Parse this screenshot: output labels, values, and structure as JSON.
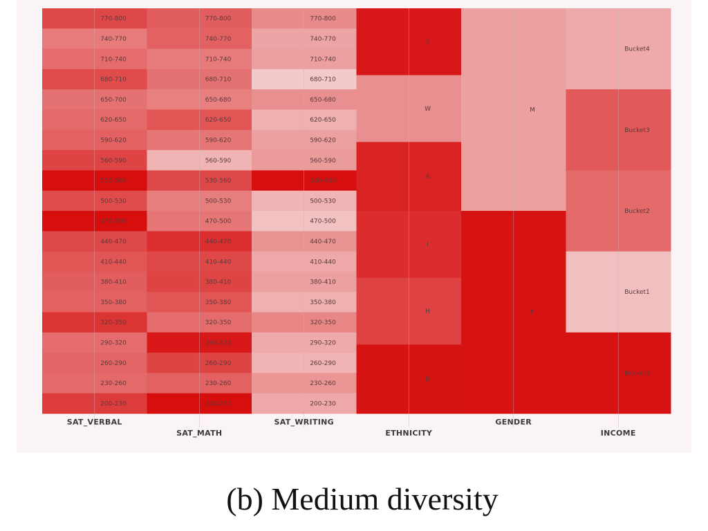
{
  "caption": "(b) Medium diversity",
  "chart_data": {
    "type": "heatmap",
    "title": "",
    "colors": {
      "low": "#f6dede",
      "high": "#d60e0e",
      "panel": "#faf4f6"
    },
    "columns": [
      {
        "name": "SAT_VERBAL",
        "cells": [
          {
            "label": "770-800",
            "value": 0.72
          },
          {
            "label": "740-770",
            "value": 0.48
          },
          {
            "label": "710-740",
            "value": 0.55
          },
          {
            "label": "680-710",
            "value": 0.7
          },
          {
            "label": "650-700",
            "value": 0.52
          },
          {
            "label": "620-650",
            "value": 0.56
          },
          {
            "label": "590-620",
            "value": 0.6
          },
          {
            "label": "560-590",
            "value": 0.74
          },
          {
            "label": "530-560",
            "value": 1.0
          },
          {
            "label": "500-530",
            "value": 0.7
          },
          {
            "label": "470-500",
            "value": 1.0
          },
          {
            "label": "440-470",
            "value": 0.72
          },
          {
            "label": "410-440",
            "value": 0.66
          },
          {
            "label": "380-410",
            "value": 0.62
          },
          {
            "label": "350-380",
            "value": 0.6
          },
          {
            "label": "320-350",
            "value": 0.82
          },
          {
            "label": "290-320",
            "value": 0.55
          },
          {
            "label": "260-290",
            "value": 0.58
          },
          {
            "label": "230-260",
            "value": 0.56
          },
          {
            "label": "200-230",
            "value": 0.78
          }
        ]
      },
      {
        "name": "SAT_MATH",
        "cells": [
          {
            "label": "770-800",
            "value": 0.62
          },
          {
            "label": "740-770",
            "value": 0.6
          },
          {
            "label": "710-740",
            "value": 0.48
          },
          {
            "label": "680-710",
            "value": 0.52
          },
          {
            "label": "650-680",
            "value": 0.45
          },
          {
            "label": "620-650",
            "value": 0.66
          },
          {
            "label": "590-620",
            "value": 0.5
          },
          {
            "label": "560-590",
            "value": 0.2
          },
          {
            "label": "530-560",
            "value": 0.72
          },
          {
            "label": "500-530",
            "value": 0.46
          },
          {
            "label": "470-500",
            "value": 0.5
          },
          {
            "label": "440-470",
            "value": 0.84
          },
          {
            "label": "410-440",
            "value": 0.72
          },
          {
            "label": "380-410",
            "value": 0.74
          },
          {
            "label": "350-380",
            "value": 0.66
          },
          {
            "label": "320-350",
            "value": 0.55
          },
          {
            "label": "290-320",
            "value": 0.95
          },
          {
            "label": "260-290",
            "value": 0.74
          },
          {
            "label": "230-260",
            "value": 0.6
          },
          {
            "label": "200-230",
            "value": 1.0
          }
        ]
      },
      {
        "name": "SAT_WRITING",
        "cells": [
          {
            "label": "770-800",
            "value": 0.4
          },
          {
            "label": "740-770",
            "value": 0.28
          },
          {
            "label": "710-740",
            "value": 0.3
          },
          {
            "label": "680-710",
            "value": 0.1
          },
          {
            "label": "650-680",
            "value": 0.38
          },
          {
            "label": "620-650",
            "value": 0.22
          },
          {
            "label": "590-620",
            "value": 0.3
          },
          {
            "label": "560-590",
            "value": 0.32
          },
          {
            "label": "530-560",
            "value": 1.0
          },
          {
            "label": "500-530",
            "value": 0.2
          },
          {
            "label": "470-500",
            "value": 0.14
          },
          {
            "label": "440-470",
            "value": 0.36
          },
          {
            "label": "410-440",
            "value": 0.26
          },
          {
            "label": "380-410",
            "value": 0.3
          },
          {
            "label": "350-380",
            "value": 0.22
          },
          {
            "label": "320-350",
            "value": 0.42
          },
          {
            "label": "290-320",
            "value": 0.25
          },
          {
            "label": "260-290",
            "value": 0.2
          },
          {
            "label": "230-260",
            "value": 0.35
          },
          {
            "label": "200-230",
            "value": 0.26
          }
        ]
      },
      {
        "name": "ETHNICITY",
        "cells": [
          {
            "label": "3",
            "value": 0.95,
            "span": 3.3
          },
          {
            "label": "W",
            "value": 0.38,
            "span": 3.3
          },
          {
            "label": "A",
            "value": 0.9,
            "span": 3.4
          },
          {
            "label": "I",
            "value": 0.85,
            "span": 3.3
          },
          {
            "label": "H",
            "value": 0.75,
            "span": 3.3
          },
          {
            "label": "B",
            "value": 0.97,
            "span": 3.4
          }
        ]
      },
      {
        "name": "GENDER",
        "cells": [
          {
            "label": "M",
            "value": 0.3,
            "span": 10.0
          },
          {
            "label": "F",
            "value": 0.98,
            "span": 10.0
          }
        ]
      },
      {
        "name": "INCOME",
        "cells": [
          {
            "label": "Bucket4",
            "value": 0.25,
            "span": 4.0
          },
          {
            "label": "Bucket3",
            "value": 0.64,
            "span": 4.0
          },
          {
            "label": "Bucket2",
            "value": 0.56,
            "span": 4.0
          },
          {
            "label": "Bucket1",
            "value": 0.15,
            "span": 4.0
          },
          {
            "label": "Bucket5",
            "value": 0.98,
            "span": 4.0
          }
        ]
      }
    ]
  }
}
